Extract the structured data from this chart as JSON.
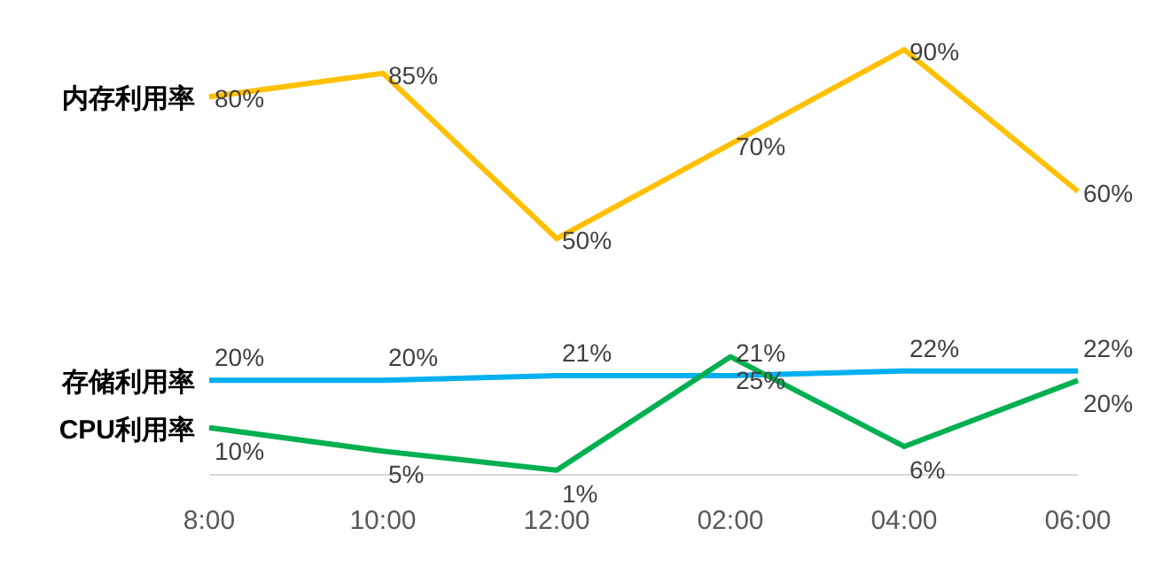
{
  "chart_data": {
    "type": "line",
    "categories": [
      "8:00",
      "10:00",
      "12:00",
      "02:00",
      "04:00",
      "06:00"
    ],
    "series": [
      {
        "name": "内存利用率",
        "color": "#ffc000",
        "values": [
          80,
          85,
          50,
          70,
          90,
          60
        ],
        "value_labels": [
          "80%",
          "85%",
          "50%",
          "70%",
          "90%",
          "60%"
        ]
      },
      {
        "name": "存储利用率",
        "color": "#00b0f0",
        "values": [
          20,
          20,
          21,
          21,
          22,
          22
        ],
        "value_labels": [
          "20%",
          "20%",
          "21%",
          "21%",
          "22%",
          "22%"
        ]
      },
      {
        "name": "CPU利用率",
        "color": "#00b050",
        "values": [
          10,
          5,
          1,
          25,
          6,
          20
        ],
        "value_labels": [
          "10%",
          "5%",
          "1%",
          "25%",
          "6%",
          "20%"
        ]
      }
    ],
    "legend": false,
    "grid": false,
    "marker": "none",
    "line_style": "solid"
  }
}
